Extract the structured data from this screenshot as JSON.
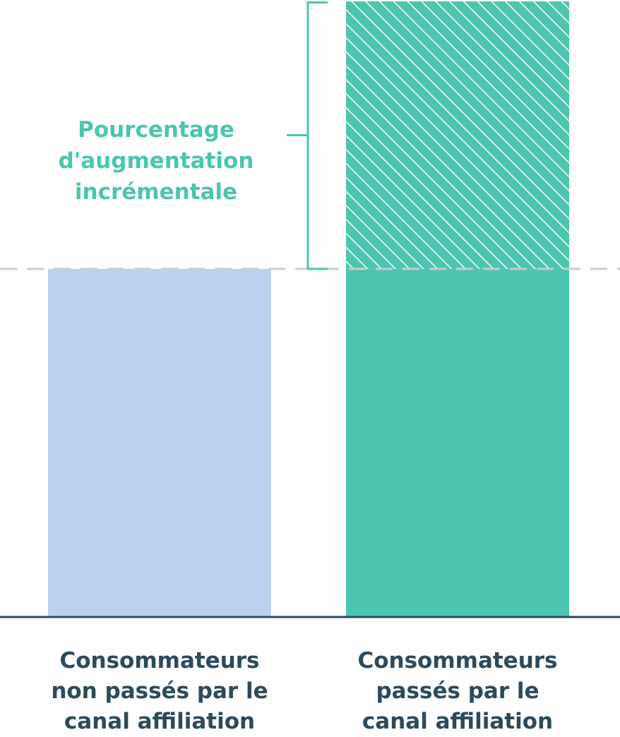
{
  "chart_data": {
    "type": "bar",
    "categories": [
      "Consommateurs\nnon passés par le\ncanal affiliation",
      "Consommateurs\npassés par le\ncanal affiliation"
    ],
    "series": [
      {
        "values": [
          100,
          100
        ],
        "colors": [
          "#b9d3ee",
          "#4bc5b0"
        ]
      },
      {
        "values": [
          0,
          77
        ],
        "color": "#4bc5b0",
        "pattern": "diagonal-hatch"
      }
    ],
    "stacked": true,
    "baseline_reference": 100,
    "ylim": [
      0,
      177
    ],
    "annotation": {
      "text": "Pourcentage\nd'augmentation\nincrémentale",
      "color": "#4bc5b0"
    },
    "grid": false,
    "axis_color": "#2c4a5c",
    "reference_line_color": "#cccccc"
  }
}
